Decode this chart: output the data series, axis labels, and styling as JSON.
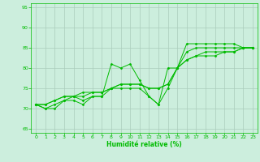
{
  "xlabel": "Humidité relative (%)",
  "ylabel": "",
  "xlim": [
    -0.5,
    23.5
  ],
  "ylim": [
    64,
    96
  ],
  "yticks": [
    65,
    70,
    75,
    80,
    85,
    90,
    95
  ],
  "xticks": [
    0,
    1,
    2,
    3,
    4,
    5,
    6,
    7,
    8,
    9,
    10,
    11,
    12,
    13,
    14,
    15,
    16,
    17,
    18,
    19,
    20,
    21,
    22,
    23
  ],
  "background_color": "#cceedd",
  "grid_color": "#aaccbb",
  "line_color": "#00bb00",
  "lines": [
    [
      71,
      70,
      70,
      72,
      72,
      71,
      73,
      73,
      81,
      80,
      81,
      77,
      73,
      71,
      80,
      80,
      86,
      86,
      86,
      86,
      86,
      86,
      85,
      85
    ],
    [
      71,
      70,
      71,
      72,
      73,
      72,
      73,
      73,
      75,
      75,
      75,
      75,
      73,
      71,
      75,
      80,
      84,
      85,
      85,
      85,
      85,
      85,
      85,
      85
    ],
    [
      71,
      71,
      72,
      73,
      73,
      73,
      74,
      74,
      75,
      76,
      76,
      76,
      75,
      75,
      76,
      80,
      82,
      83,
      83,
      83,
      84,
      84,
      85,
      85
    ],
    [
      71,
      71,
      72,
      73,
      73,
      74,
      74,
      74,
      75,
      76,
      76,
      76,
      75,
      75,
      76,
      80,
      82,
      83,
      84,
      84,
      84,
      84,
      85,
      85
    ]
  ]
}
